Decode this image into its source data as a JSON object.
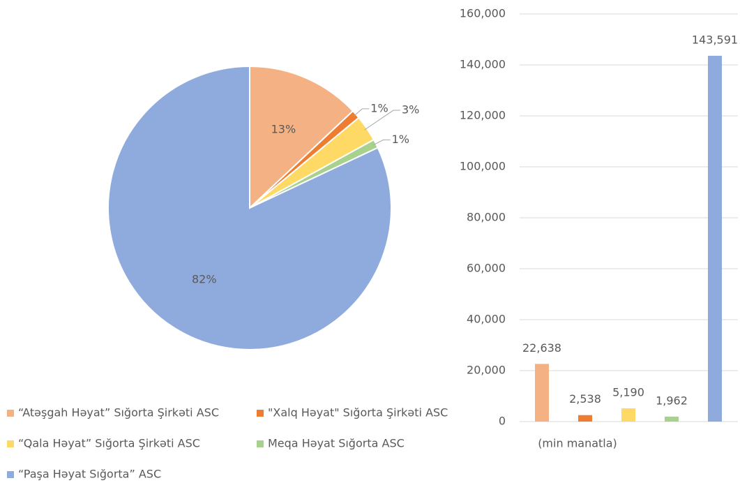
{
  "chart_data": [
    {
      "type": "pie",
      "categories": [
        "“Atəşgah Həyat” Sığorta Şirkəti ASC",
        "\"Xalq Həyat\" Sığorta Şirkəti ASC",
        "“Qala Həyat” Sığorta Şirkəti ASC",
        "Meqa Həyat Sığorta ASC",
        "“Paşa Həyat Sığorta” ASC"
      ],
      "values": [
        13,
        1,
        3,
        1,
        82
      ],
      "value_labels": [
        "13%",
        "1%",
        "3%",
        "1%",
        "82%"
      ],
      "colors": [
        "#F4B183",
        "#ED7D31",
        "#FFD966",
        "#A9D18E",
        "#8FAADC"
      ]
    },
    {
      "type": "bar",
      "categories": [
        null,
        null,
        null,
        null,
        null
      ],
      "values": [
        22638,
        2538,
        5190,
        1962,
        143591
      ],
      "value_labels": [
        "22,638",
        "2,538",
        "5,190",
        "1,962",
        "143,591"
      ],
      "colors": [
        "#F4B183",
        "#ED7D31",
        "#FFD966",
        "#A9D18E",
        "#8FAADC"
      ],
      "xlabel": "(min manatla)",
      "ylim": [
        0,
        160000
      ],
      "yticks": [
        0,
        {
          "value": 20000,
          "label": "20,000"
        },
        {
          "value": 40000,
          "label": "40,000"
        },
        {
          "value": 60000,
          "label": "60,000"
        },
        {
          "value": 80000,
          "label": "80,000"
        },
        {
          "value": 100000,
          "label": "100,000"
        },
        {
          "value": 120000,
          "label": "120,000"
        },
        {
          "value": 140000,
          "label": "140,000"
        },
        {
          "value": 160000,
          "label": "160,000"
        }
      ],
      "grid": true
    }
  ]
}
